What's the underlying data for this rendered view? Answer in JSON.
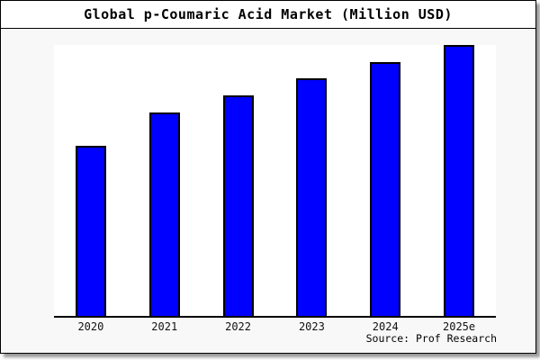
{
  "title": "Global p-Coumaric Acid Market (Million USD)",
  "source_note": "Source: Prof Research",
  "colors": {
    "bar_fill": "#0000ff",
    "bar_border": "#000000",
    "chart_background": "#f8f8f8",
    "plot_background": "#ffffff",
    "title_background": "#ffffff",
    "frame_border": "#000000",
    "shadow": "#9a9a9a",
    "axis_line": "#000000"
  },
  "chart_data": {
    "type": "bar",
    "title": "Global p-Coumaric Acid Market (Million USD)",
    "categories": [
      "2020",
      "2021",
      "2022",
      "2023",
      "2024",
      "2025e"
    ],
    "values": [
      62.8,
      75.1,
      81.4,
      87.7,
      93.7,
      100
    ],
    "values_scale": "relative heights, tallest bar (2025e) = 100; y-axis has no tick labels in the image",
    "unit": "Million USD (numeric axis values not shown)",
    "xlabel": "",
    "ylabel": "",
    "ylim": [
      0,
      100
    ],
    "grid": false,
    "legend": false,
    "y_axis_ticks_shown": false,
    "bar_color": "#0000ff",
    "annotation": "Source: Prof Research"
  }
}
